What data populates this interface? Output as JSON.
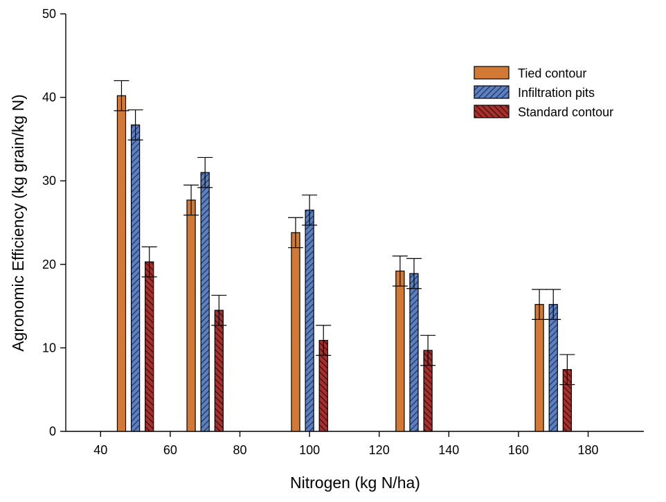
{
  "chart_data": {
    "type": "bar",
    "xlabel": "Nitrogen (kg N/ha)",
    "ylabel": "Agronomic Efficiency (kg grain/kg N)",
    "xlim": [
      30,
      196
    ],
    "ylim": [
      0,
      50
    ],
    "xticks": [
      40,
      60,
      80,
      100,
      120,
      140,
      160,
      180
    ],
    "yticks": [
      0,
      10,
      20,
      30,
      40,
      50
    ],
    "x": [
      50,
      70,
      100,
      130,
      170
    ],
    "bar_offset": 4,
    "bar_width": 2.4,
    "grid": false,
    "legend_position": "top-right",
    "series": [
      {
        "name": "Tied contour",
        "color": "#d27a35",
        "pattern": "solid",
        "values": [
          40.2,
          27.7,
          23.8,
          19.2,
          15.2
        ],
        "errors": [
          1.8,
          1.8,
          1.8,
          1.8,
          1.8
        ]
      },
      {
        "name": "Infiltration pits",
        "color": "#5b7fbf",
        "pattern": "hatch-right",
        "values": [
          36.7,
          31.0,
          26.5,
          18.9,
          15.2
        ],
        "errors": [
          1.8,
          1.8,
          1.8,
          1.8,
          1.8
        ]
      },
      {
        "name": "Standard contour",
        "color": "#a7302c",
        "pattern": "hatch-left",
        "values": [
          20.3,
          14.5,
          10.9,
          9.7,
          7.4
        ],
        "errors": [
          1.8,
          1.8,
          1.8,
          1.8,
          1.8
        ]
      }
    ]
  }
}
